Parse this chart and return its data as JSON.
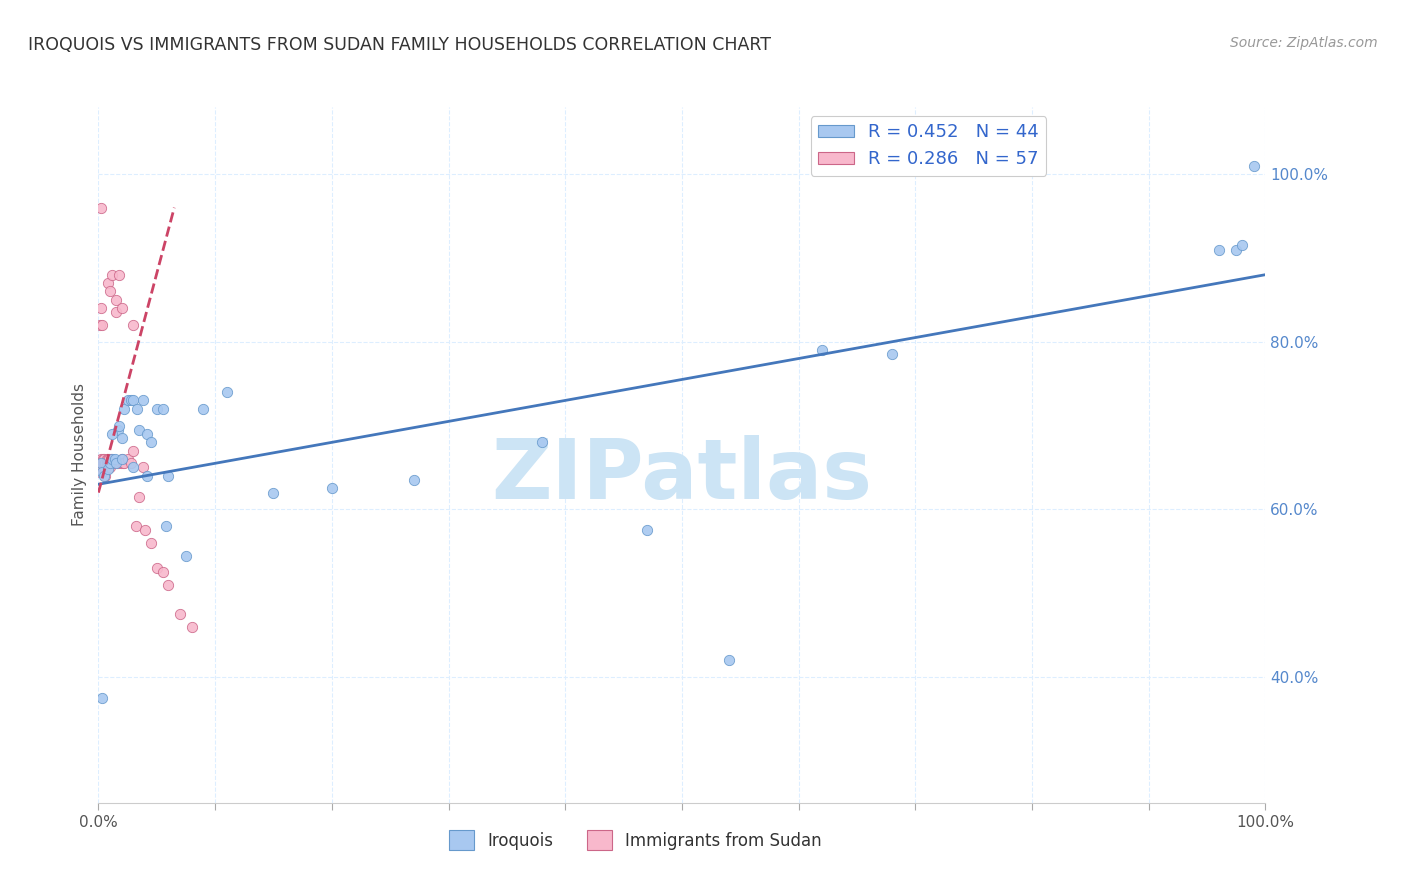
{
  "title": "IROQUOIS VS IMMIGRANTS FROM SUDAN FAMILY HOUSEHOLDS CORRELATION CHART",
  "source": "Source: ZipAtlas.com",
  "ylabel": "Family Households",
  "series1_label": "Iroquois",
  "series2_label": "Immigrants from Sudan",
  "series1_color": "#a8c8f0",
  "series1_edge": "#6699cc",
  "series2_color": "#f8b8cc",
  "series2_edge": "#cc6688",
  "trendline1_color": "#4477bb",
  "trendline2_color": "#cc4466",
  "watermark": "ZIPatlas",
  "watermark_color": "#cce4f5",
  "background_color": "#ffffff",
  "grid_color": "#ddeeff",
  "title_fontsize": 12.5,
  "source_fontsize": 10,
  "legend1_label": "R = 0.452   N = 44",
  "legend2_label": "R = 0.286   N = 57",
  "xlim": [
    0.0,
    1.0
  ],
  "ylim": [
    0.25,
    1.08
  ],
  "y_ticks": [
    0.4,
    0.6,
    0.8,
    1.0
  ],
  "y_tick_labels_right": [
    "40.0%",
    "60.0%",
    "80.0%",
    "100.0%"
  ],
  "series1_x": [
    0.002,
    0.003,
    0.005,
    0.008,
    0.01,
    0.012,
    0.014,
    0.015,
    0.017,
    0.018,
    0.02,
    0.022,
    0.025,
    0.028,
    0.03,
    0.033,
    0.035,
    0.038,
    0.042,
    0.045,
    0.05,
    0.055,
    0.06,
    0.075,
    0.09,
    0.11,
    0.15,
    0.2,
    0.27,
    0.38,
    0.47,
    0.54,
    0.62,
    0.68,
    0.96,
    0.975,
    0.99,
    0.003,
    0.012,
    0.02,
    0.03,
    0.042,
    0.058,
    0.98
  ],
  "series1_y": [
    0.655,
    0.645,
    0.64,
    0.648,
    0.655,
    0.66,
    0.66,
    0.655,
    0.695,
    0.7,
    0.685,
    0.72,
    0.73,
    0.73,
    0.73,
    0.72,
    0.695,
    0.73,
    0.69,
    0.68,
    0.72,
    0.72,
    0.64,
    0.545,
    0.72,
    0.74,
    0.62,
    0.625,
    0.635,
    0.68,
    0.575,
    0.42,
    0.79,
    0.785,
    0.91,
    0.91,
    1.01,
    0.375,
    0.69,
    0.66,
    0.65,
    0.64,
    0.58,
    0.915
  ],
  "series2_x": [
    0.001,
    0.001,
    0.002,
    0.002,
    0.002,
    0.003,
    0.003,
    0.004,
    0.004,
    0.005,
    0.005,
    0.005,
    0.006,
    0.006,
    0.007,
    0.007,
    0.007,
    0.008,
    0.008,
    0.008,
    0.009,
    0.009,
    0.01,
    0.01,
    0.01,
    0.011,
    0.011,
    0.012,
    0.013,
    0.014,
    0.015,
    0.016,
    0.017,
    0.018,
    0.019,
    0.02,
    0.021,
    0.022,
    0.025,
    0.028,
    0.03,
    0.032,
    0.035,
    0.038,
    0.04,
    0.045,
    0.05,
    0.055,
    0.06,
    0.07,
    0.08,
    0.001,
    0.002,
    0.003,
    0.015,
    0.02,
    0.03
  ],
  "series2_y": [
    0.645,
    0.655,
    0.65,
    0.66,
    0.96,
    0.65,
    0.655,
    0.655,
    0.66,
    0.65,
    0.655,
    0.66,
    0.64,
    0.655,
    0.655,
    0.66,
    0.655,
    0.655,
    0.66,
    0.87,
    0.655,
    0.66,
    0.65,
    0.655,
    0.86,
    0.655,
    0.66,
    0.88,
    0.655,
    0.655,
    0.85,
    0.655,
    0.655,
    0.88,
    0.655,
    0.66,
    0.655,
    0.655,
    0.66,
    0.655,
    0.67,
    0.58,
    0.615,
    0.65,
    0.575,
    0.56,
    0.53,
    0.525,
    0.51,
    0.475,
    0.46,
    0.82,
    0.84,
    0.82,
    0.835,
    0.84,
    0.82
  ],
  "trendline1_x": [
    0.0,
    1.0
  ],
  "trendline1_y_start": 0.63,
  "trendline1_y_end": 0.88,
  "trendline2_x_start": 0.0,
  "trendline2_x_end": 0.065,
  "trendline2_y_start": 0.62,
  "trendline2_y_end": 0.96
}
